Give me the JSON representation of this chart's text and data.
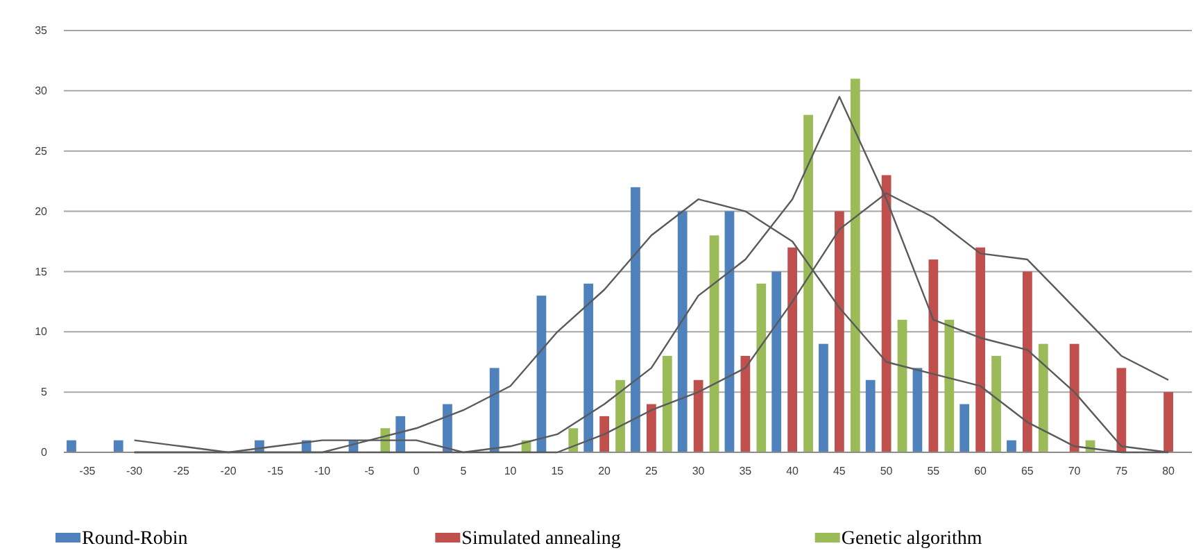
{
  "chart_data": {
    "type": "bar",
    "categories": [
      "-35",
      "-30",
      "-25",
      "-20",
      "-15",
      "-10",
      "-5",
      "0",
      "5",
      "10",
      "15",
      "20",
      "25",
      "30",
      "35",
      "40",
      "45",
      "50",
      "55",
      "60",
      "65",
      "70",
      "75",
      "80"
    ],
    "series": [
      {
        "name": "Round-Robin",
        "color": "#4f81bd",
        "values": [
          1,
          1,
          0,
          0,
          1,
          1,
          1,
          3,
          4,
          7,
          13,
          14,
          22,
          20,
          20,
          15,
          9,
          6,
          7,
          4,
          1,
          0,
          0,
          0
        ]
      },
      {
        "name": "Simulated annealing",
        "color": "#c0504d",
        "values": [
          0,
          0,
          0,
          0,
          0,
          0,
          0,
          0,
          0,
          0,
          0,
          3,
          4,
          6,
          8,
          17,
          20,
          23,
          16,
          17,
          15,
          9,
          7,
          5
        ]
      },
      {
        "name": "Genetic algorithm",
        "color": "#9bbb59",
        "values": [
          0,
          0,
          0,
          0,
          0,
          0,
          2,
          0,
          0,
          1,
          2,
          6,
          8,
          18,
          14,
          28,
          31,
          11,
          11,
          8,
          9,
          1,
          0,
          0
        ]
      },
      {
        "type": "line",
        "color": "#5a5a5a",
        "values": [
          null,
          1,
          0.5,
          0,
          0.5,
          1,
          1,
          2,
          3.5,
          5.5,
          10,
          13.5,
          18,
          21,
          20,
          17.5,
          12,
          7.5,
          6.5,
          5.5,
          2.5,
          0.5,
          0,
          0
        ]
      },
      {
        "type": "line",
        "color": "#5a5a5a",
        "values": [
          null,
          0,
          0,
          0,
          0,
          0,
          0,
          0,
          0,
          0,
          0,
          1.5,
          3.5,
          5,
          7,
          12.5,
          18.5,
          21.5,
          19.5,
          16.5,
          16,
          12,
          8,
          6
        ]
      },
      {
        "type": "line",
        "color": "#5a5a5a",
        "values": [
          null,
          0,
          0,
          0,
          0,
          0,
          1,
          1,
          0,
          0.5,
          1.5,
          4,
          7,
          13,
          16,
          21,
          29.5,
          21,
          11,
          9.5,
          8.5,
          5,
          0.5,
          0
        ]
      }
    ],
    "ylim": [
      0,
      35
    ],
    "yticks": [
      0,
      5,
      10,
      15,
      20,
      25,
      30,
      35
    ],
    "grid": "y",
    "legend": "bottom"
  }
}
